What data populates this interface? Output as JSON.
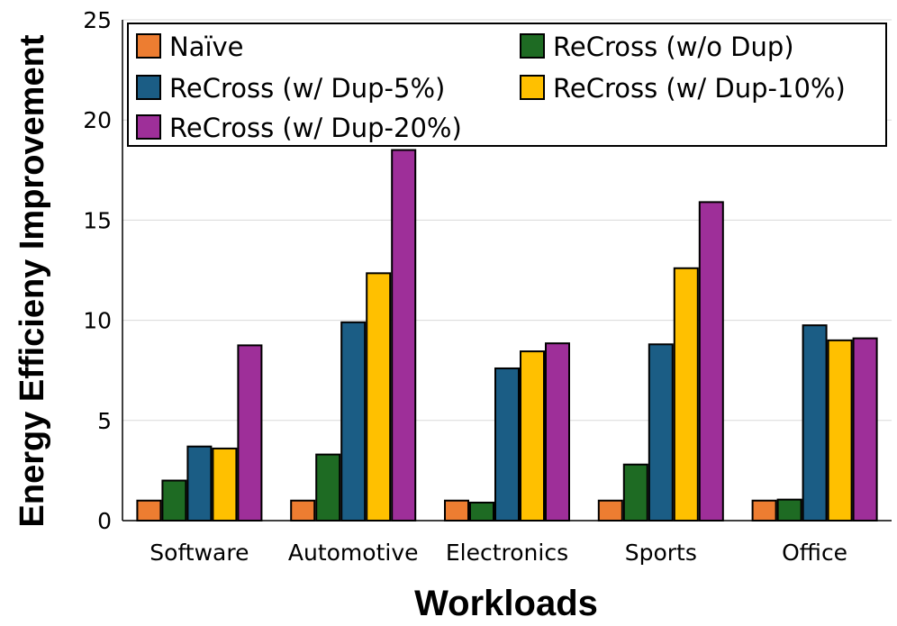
{
  "chart_data": {
    "type": "bar",
    "title": "",
    "xlabel": "Workloads",
    "ylabel": "Energy Efficieny Improvement",
    "ylim": [
      0,
      25
    ],
    "yticks": [
      "0",
      "5",
      "10",
      "15",
      "20",
      "25"
    ],
    "grid": "horizontal",
    "legend_position": "top",
    "categories": [
      "Software",
      "Automotive",
      "Electronics",
      "Sports",
      "Office"
    ],
    "series": [
      {
        "name": "Naïve",
        "color": "#ED7D31",
        "values": [
          1.0,
          1.0,
          1.0,
          1.0,
          1.0
        ]
      },
      {
        "name": "ReCross (w/o Dup)",
        "color": "#1E6B23",
        "values": [
          2.0,
          3.3,
          0.9,
          2.8,
          1.05
        ]
      },
      {
        "name": "ReCross (w/ Dup-5%)",
        "color": "#1B5D85",
        "values": [
          3.7,
          9.9,
          7.6,
          8.8,
          9.75
        ]
      },
      {
        "name": "ReCross (w/ Dup-10%)",
        "color": "#FFC000",
        "values": [
          3.6,
          12.35,
          8.45,
          12.6,
          9.0
        ]
      },
      {
        "name": "ReCross (w/ Dup-20%)",
        "color": "#9E2F99",
        "values": [
          8.75,
          18.5,
          8.85,
          15.9,
          9.1
        ]
      }
    ]
  }
}
